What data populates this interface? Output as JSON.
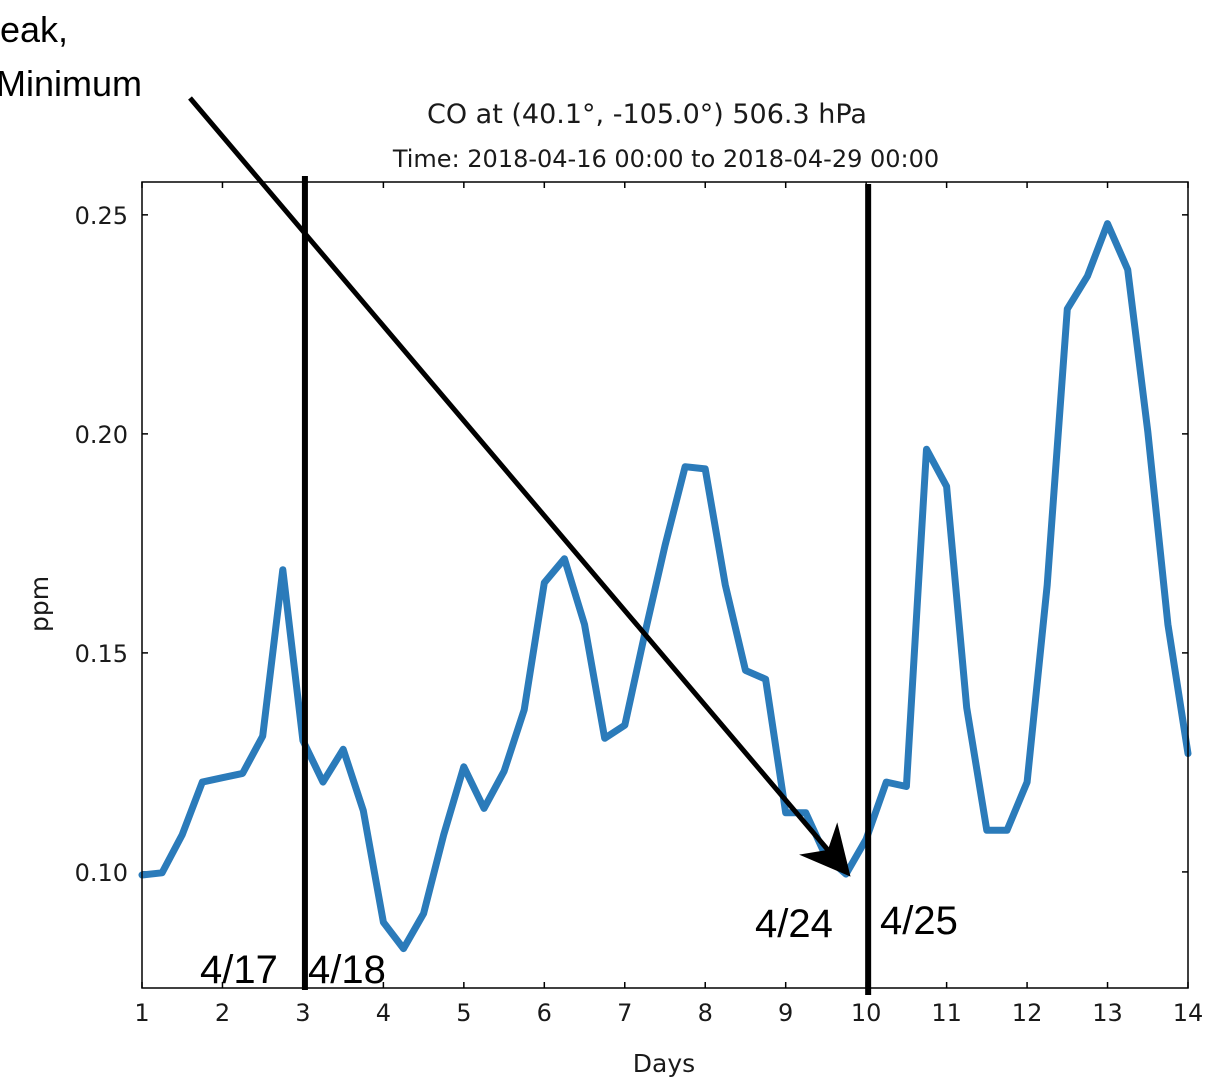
{
  "chart_data": {
    "type": "line",
    "title": "CO at (40.1°, -105.0°) 506.3 hPa",
    "subtitle": "Time: 2018-04-16 00:00 to 2018-04-29 00:00",
    "xlabel": "Days",
    "ylabel": "ppm",
    "xlim": [
      1,
      14
    ],
    "ylim": [
      0.0735,
      0.2575
    ],
    "xticks": [
      "1",
      "2",
      "3",
      "4",
      "5",
      "6",
      "7",
      "8",
      "9",
      "10",
      "11",
      "12",
      "13",
      "14"
    ],
    "yticks": [
      "0.10",
      "0.15",
      "0.20",
      "0.25"
    ],
    "grid": false,
    "line_color": "#2b7bba",
    "series": [
      {
        "x": [
          1,
          1.25,
          1.5,
          1.75,
          2,
          2.25,
          2.5,
          2.75,
          3,
          3.25,
          3.5,
          3.75,
          4,
          4.25,
          4.5,
          4.75,
          5,
          5.25,
          5.5,
          5.75,
          6,
          6.25,
          6.5,
          6.75,
          7,
          7.25,
          7.5,
          7.75,
          8,
          8.25,
          8.5,
          8.75,
          9,
          9.25,
          9.5,
          9.75,
          10,
          10.25,
          10.5,
          10.75,
          11,
          11.25,
          11.5,
          11.75,
          12,
          12.25,
          12.5,
          12.75,
          13,
          13.25,
          13.5,
          13.75,
          14
        ],
        "y": [
          0.0993,
          0.0998,
          0.1085,
          0.1205,
          0.1215,
          0.1225,
          0.131,
          0.169,
          0.13,
          0.1205,
          0.128,
          0.114,
          0.0885,
          0.0825,
          0.0905,
          0.1085,
          0.124,
          0.1145,
          0.123,
          0.137,
          0.166,
          0.1715,
          0.1565,
          0.1305,
          0.1335,
          0.1545,
          0.1745,
          0.1925,
          0.192,
          0.1655,
          0.146,
          0.144,
          0.1135,
          0.1135,
          0.1035,
          0.0995,
          0.1075,
          0.1205,
          0.1195,
          0.1965,
          0.188,
          0.1375,
          0.1095,
          0.1095,
          0.1205,
          0.1655,
          0.2285,
          0.236,
          0.248,
          0.2375,
          0.2005,
          0.1565,
          0.127
        ]
      }
    ]
  },
  "annotations": {
    "vline_left_x": 3,
    "vline_right_x": 10,
    "label_417": "4/17",
    "label_418": "4/18",
    "label_424": "4/24",
    "label_425": "4/25",
    "callout_line1": "eak,",
    "callout_line2": "Minimum",
    "arrow_target": {
      "x": 9.8,
      "y": 0.0993
    }
  }
}
